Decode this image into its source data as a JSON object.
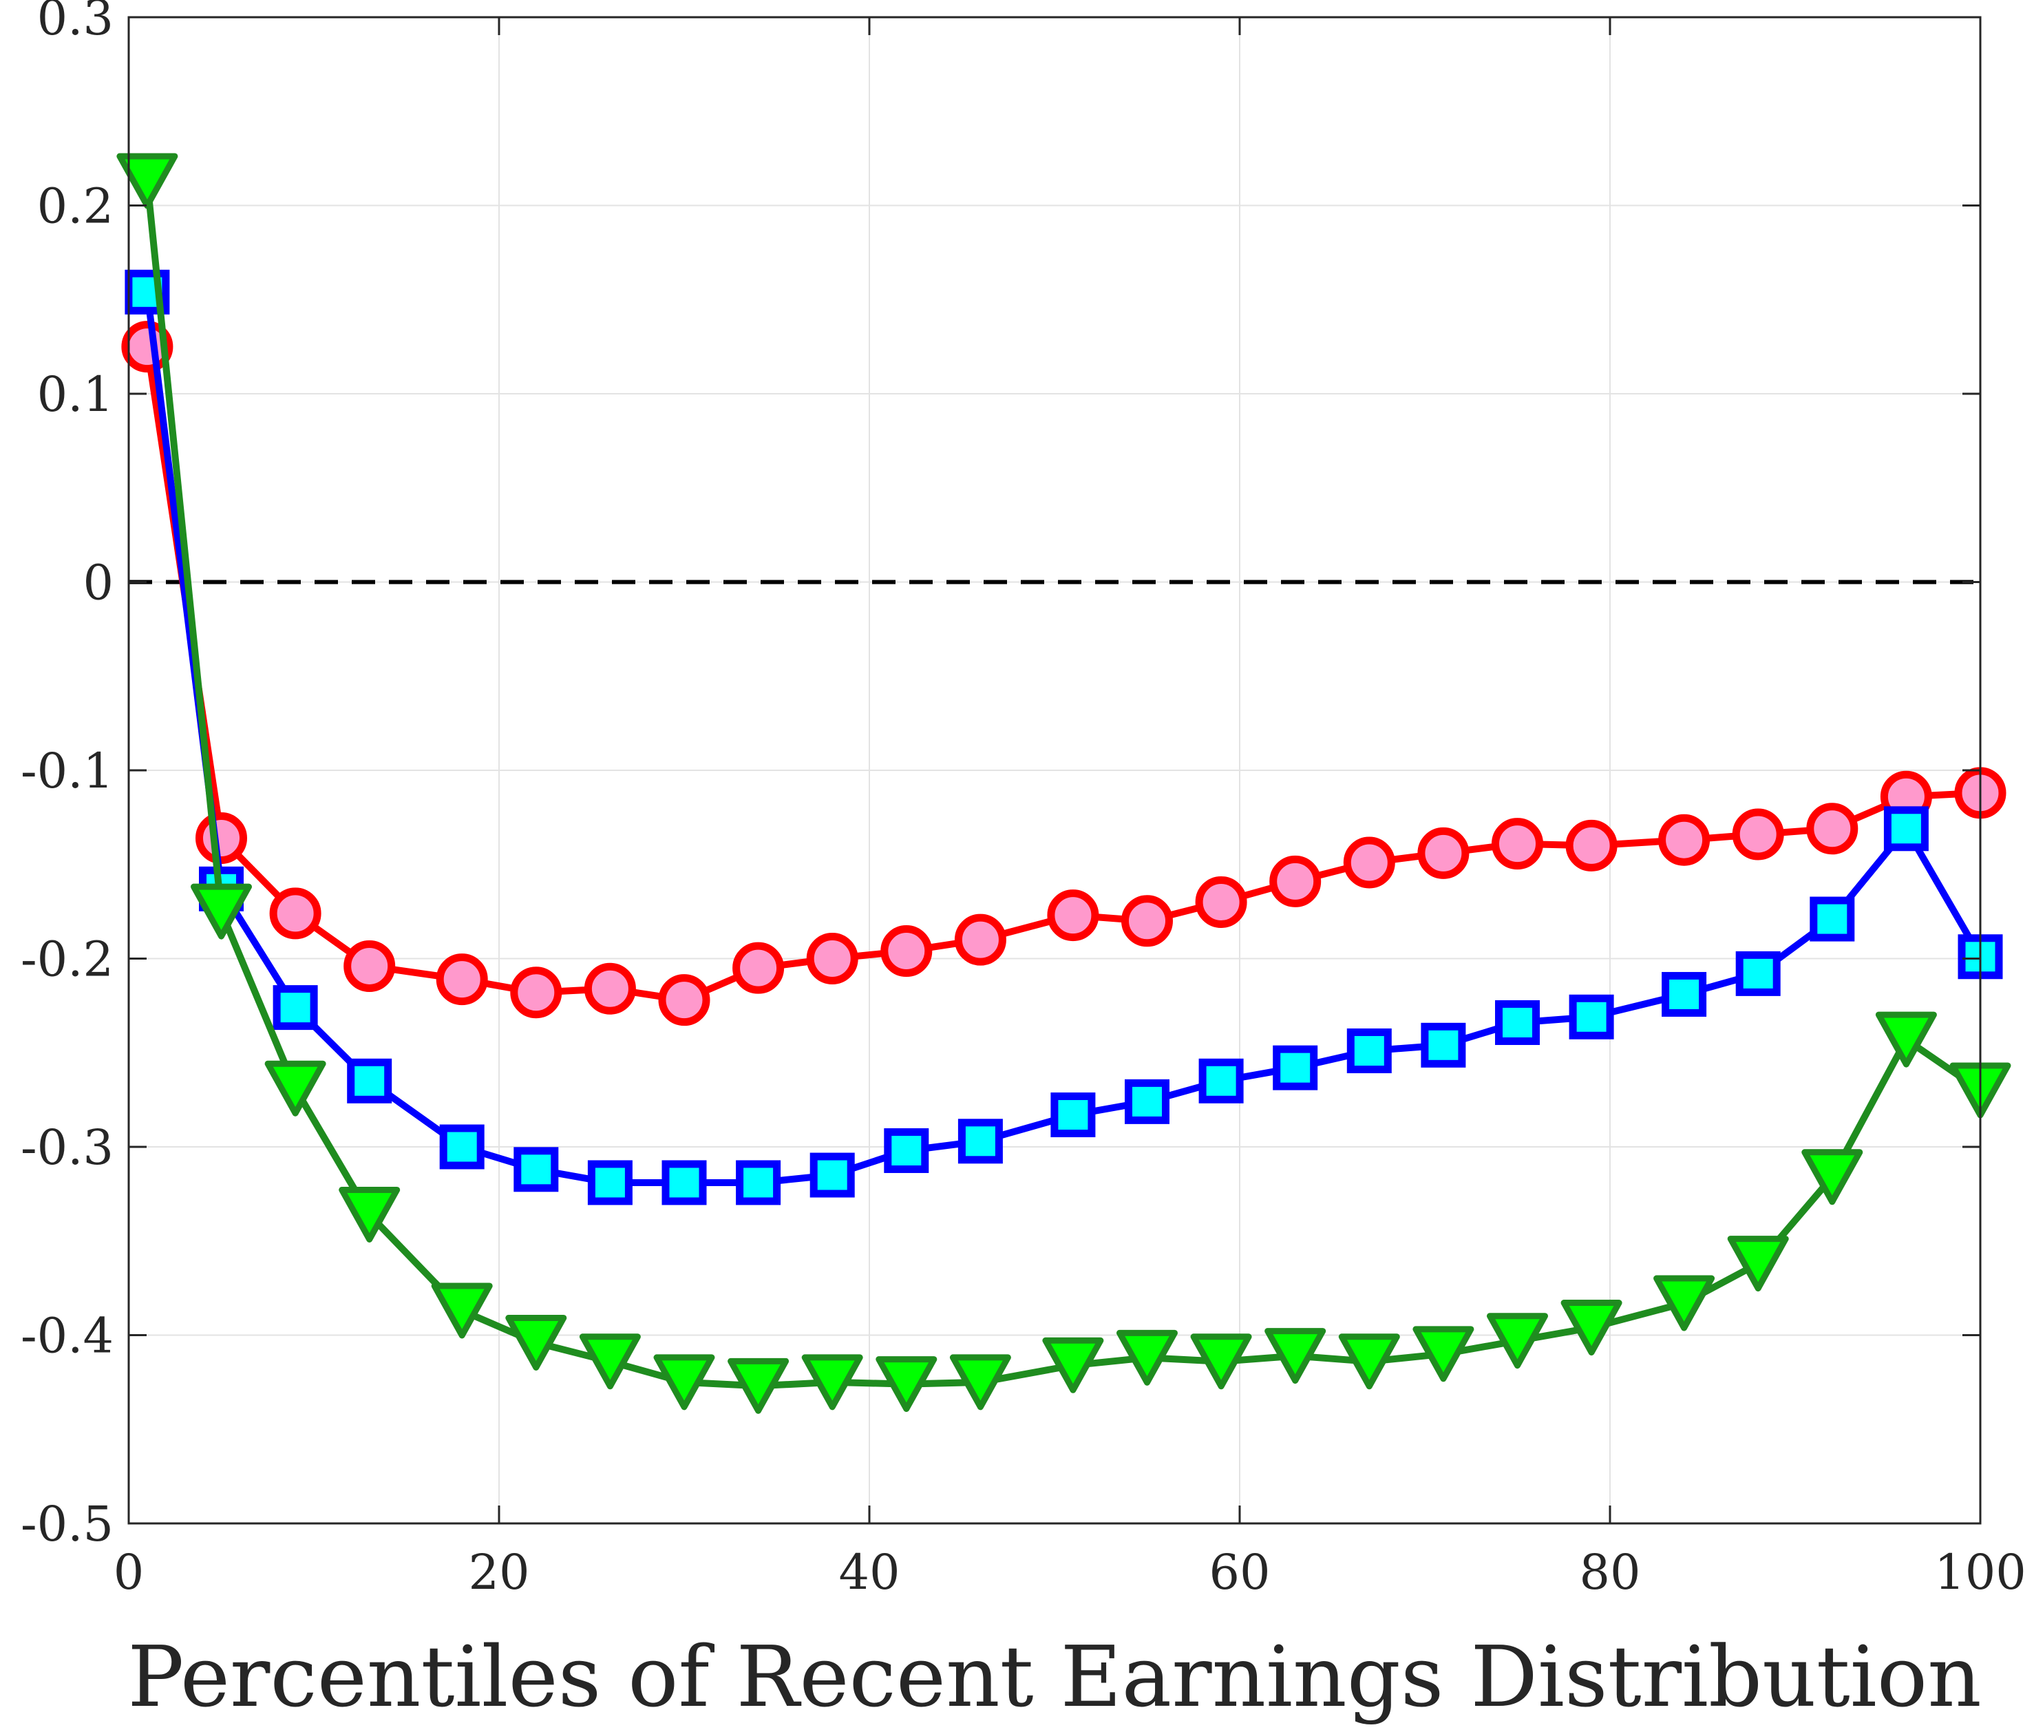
{
  "chart_data": {
    "type": "line",
    "title": "",
    "xlabel": "Percentiles of Recent Earnings Distribution",
    "ylabel": "",
    "xlim": [
      0,
      100
    ],
    "ylim": [
      -0.5,
      0.3
    ],
    "xticks": [
      0,
      20,
      40,
      60,
      80,
      100
    ],
    "yticks": [
      -0.5,
      -0.4,
      -0.3,
      -0.2,
      -0.1,
      0,
      0.1,
      0.2,
      0.3
    ],
    "xtick_labels": [
      "0",
      "20",
      "40",
      "60",
      "80",
      "100"
    ],
    "ytick_labels": [
      "-0.5",
      "-0.4",
      "-0.3",
      "-0.2",
      "-0.1",
      "0",
      "0.1",
      "0.2",
      "0.3"
    ],
    "grid": true,
    "reference_line": {
      "y": 0,
      "style": "dashed",
      "color": "#000000"
    },
    "series": [
      {
        "marker": "circle",
        "line_color": "#ff0000",
        "marker_fill": "#ff99cc",
        "points": [
          [
            1,
            0.125
          ],
          [
            5,
            -0.136
          ],
          [
            9,
            -0.176
          ],
          [
            13,
            -0.204
          ],
          [
            18,
            -0.211
          ],
          [
            22,
            -0.218
          ],
          [
            26,
            -0.216
          ],
          [
            30,
            -0.222
          ],
          [
            34,
            -0.205
          ],
          [
            38,
            -0.2
          ],
          [
            42,
            -0.196
          ],
          [
            46,
            -0.19
          ],
          [
            51,
            -0.177
          ],
          [
            55,
            -0.18
          ],
          [
            59,
            -0.17
          ],
          [
            63,
            -0.159
          ],
          [
            67,
            -0.149
          ],
          [
            71,
            -0.144
          ],
          [
            75,
            -0.139
          ],
          [
            79,
            -0.14
          ],
          [
            84,
            -0.137
          ],
          [
            88,
            -0.134
          ],
          [
            92,
            -0.131
          ],
          [
            96,
            -0.114
          ],
          [
            100,
            -0.112
          ]
        ]
      },
      {
        "marker": "square",
        "line_color": "#0000ff",
        "marker_fill": "#00ffff",
        "points": [
          [
            1,
            0.154
          ],
          [
            5,
            -0.163
          ],
          [
            9,
            -0.226
          ],
          [
            13,
            -0.265
          ],
          [
            18,
            -0.3
          ],
          [
            22,
            -0.312
          ],
          [
            26,
            -0.319
          ],
          [
            30,
            -0.319
          ],
          [
            34,
            -0.319
          ],
          [
            38,
            -0.315
          ],
          [
            42,
            -0.302
          ],
          [
            46,
            -0.297
          ],
          [
            51,
            -0.283
          ],
          [
            55,
            -0.276
          ],
          [
            59,
            -0.265
          ],
          [
            63,
            -0.258
          ],
          [
            67,
            -0.249
          ],
          [
            71,
            -0.246
          ],
          [
            75,
            -0.234
          ],
          [
            79,
            -0.231
          ],
          [
            84,
            -0.219
          ],
          [
            88,
            -0.208
          ],
          [
            92,
            -0.179
          ],
          [
            96,
            -0.131
          ],
          [
            100,
            -0.199
          ]
        ]
      },
      {
        "marker": "triangle-down",
        "line_color": "#1f8c1f",
        "marker_fill": "#00ff00",
        "points": [
          [
            1,
            0.213
          ],
          [
            5,
            -0.175
          ],
          [
            9,
            -0.269
          ],
          [
            13,
            -0.336
          ],
          [
            18,
            -0.387
          ],
          [
            22,
            -0.404
          ],
          [
            26,
            -0.414
          ],
          [
            30,
            -0.425
          ],
          [
            34,
            -0.427
          ],
          [
            38,
            -0.425
          ],
          [
            42,
            -0.426
          ],
          [
            46,
            -0.425
          ],
          [
            51,
            -0.416
          ],
          [
            55,
            -0.412
          ],
          [
            59,
            -0.414
          ],
          [
            63,
            -0.411
          ],
          [
            67,
            -0.414
          ],
          [
            71,
            -0.41
          ],
          [
            75,
            -0.403
          ],
          [
            79,
            -0.396
          ],
          [
            84,
            -0.383
          ],
          [
            88,
            -0.362
          ],
          [
            92,
            -0.316
          ],
          [
            96,
            -0.243
          ],
          [
            100,
            -0.27
          ]
        ]
      }
    ]
  }
}
